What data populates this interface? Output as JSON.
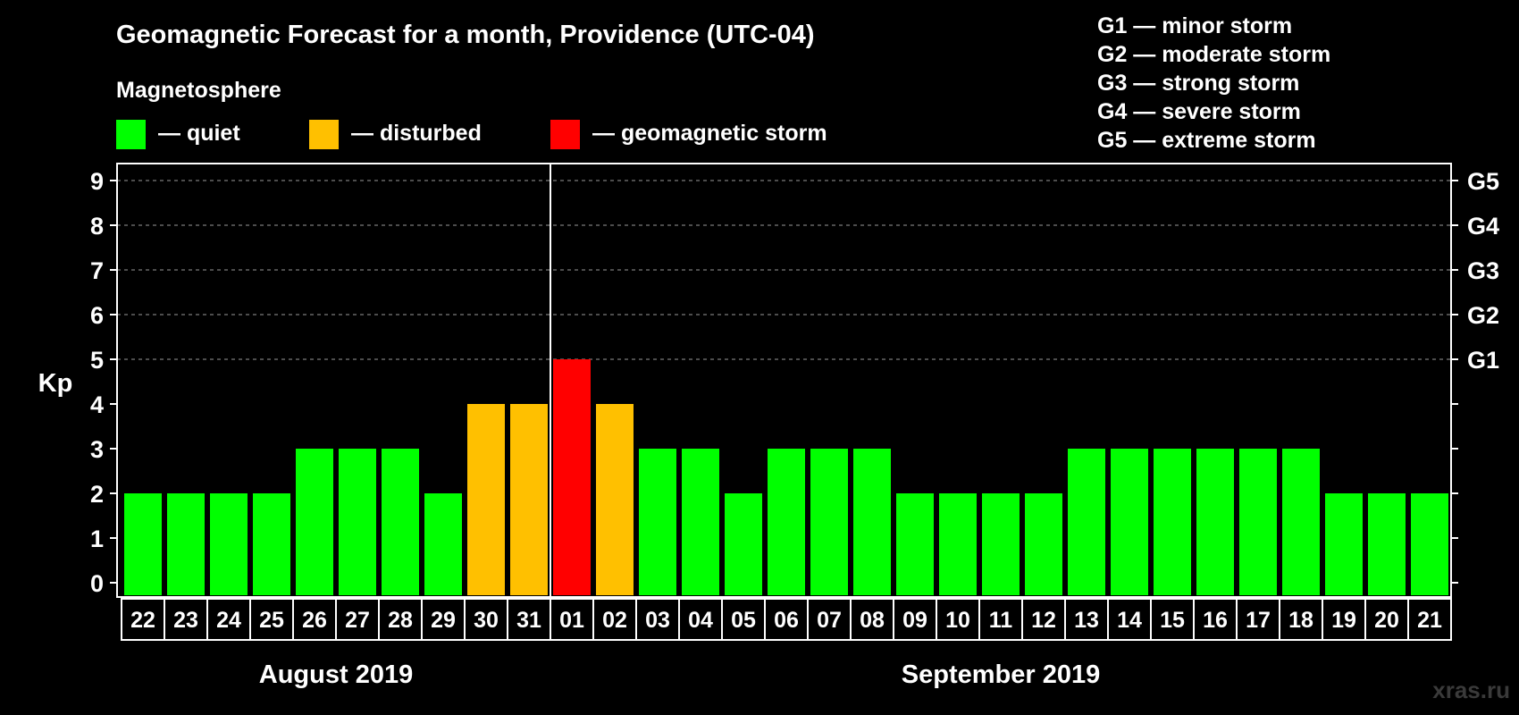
{
  "chart_data": {
    "type": "bar",
    "title": "Geomagnetic Forecast for a month, Providence (UTC-04)",
    "subtitle": "Magnetosphere",
    "ylabel": "Kp",
    "xlabel": "",
    "ylim": [
      0,
      9
    ],
    "yticks": [
      "0",
      "1",
      "2",
      "3",
      "4",
      "5",
      "6",
      "7",
      "8",
      "9"
    ],
    "dashed_gridlines_at": [
      5,
      6,
      7,
      8,
      9
    ],
    "right_axis_labels": [
      {
        "value": 5,
        "label": "G1"
      },
      {
        "value": 6,
        "label": "G2"
      },
      {
        "value": 7,
        "label": "G3"
      },
      {
        "value": 8,
        "label": "G4"
      },
      {
        "value": 9,
        "label": "G5"
      }
    ],
    "categories": [
      "22",
      "23",
      "24",
      "25",
      "26",
      "27",
      "28",
      "29",
      "30",
      "31",
      "01",
      "02",
      "03",
      "04",
      "05",
      "06",
      "07",
      "08",
      "09",
      "10",
      "11",
      "12",
      "13",
      "14",
      "15",
      "16",
      "17",
      "18",
      "19",
      "20",
      "21"
    ],
    "values": [
      2,
      2,
      2,
      2,
      3,
      3,
      3,
      2,
      4,
      4,
      5,
      4,
      3,
      3,
      2,
      3,
      3,
      3,
      2,
      2,
      2,
      2,
      3,
      3,
      3,
      3,
      3,
      3,
      2,
      2,
      2
    ],
    "states": [
      "quiet",
      "quiet",
      "quiet",
      "quiet",
      "quiet",
      "quiet",
      "quiet",
      "quiet",
      "disturbed",
      "disturbed",
      "storm",
      "disturbed",
      "quiet",
      "quiet",
      "quiet",
      "quiet",
      "quiet",
      "quiet",
      "quiet",
      "quiet",
      "quiet",
      "quiet",
      "quiet",
      "quiet",
      "quiet",
      "quiet",
      "quiet",
      "quiet",
      "quiet",
      "quiet",
      "quiet"
    ],
    "month_divider_after_index": 9,
    "months": [
      {
        "label": "August 2019",
        "first_index": 0,
        "last_index": 9
      },
      {
        "label": "September 2019",
        "first_index": 10,
        "last_index": 30
      }
    ],
    "legend": [
      {
        "key": "quiet",
        "label": "— quiet"
      },
      {
        "key": "disturbed",
        "label": "— disturbed"
      },
      {
        "key": "storm",
        "label": "— geomagnetic storm"
      }
    ],
    "g_legend": [
      "G1 — minor storm",
      "G2 — moderate storm",
      "G3 — strong storm",
      "G4 — severe storm",
      "G5 — extreme storm"
    ]
  },
  "colors": {
    "quiet": "#00ff00",
    "disturbed": "#ffc000",
    "storm": "#ff0000",
    "background": "#000000",
    "foreground": "#ffffff",
    "grid": "#9a9a9a",
    "watermark": "#3a3a3a"
  },
  "watermark": "xras.ru"
}
